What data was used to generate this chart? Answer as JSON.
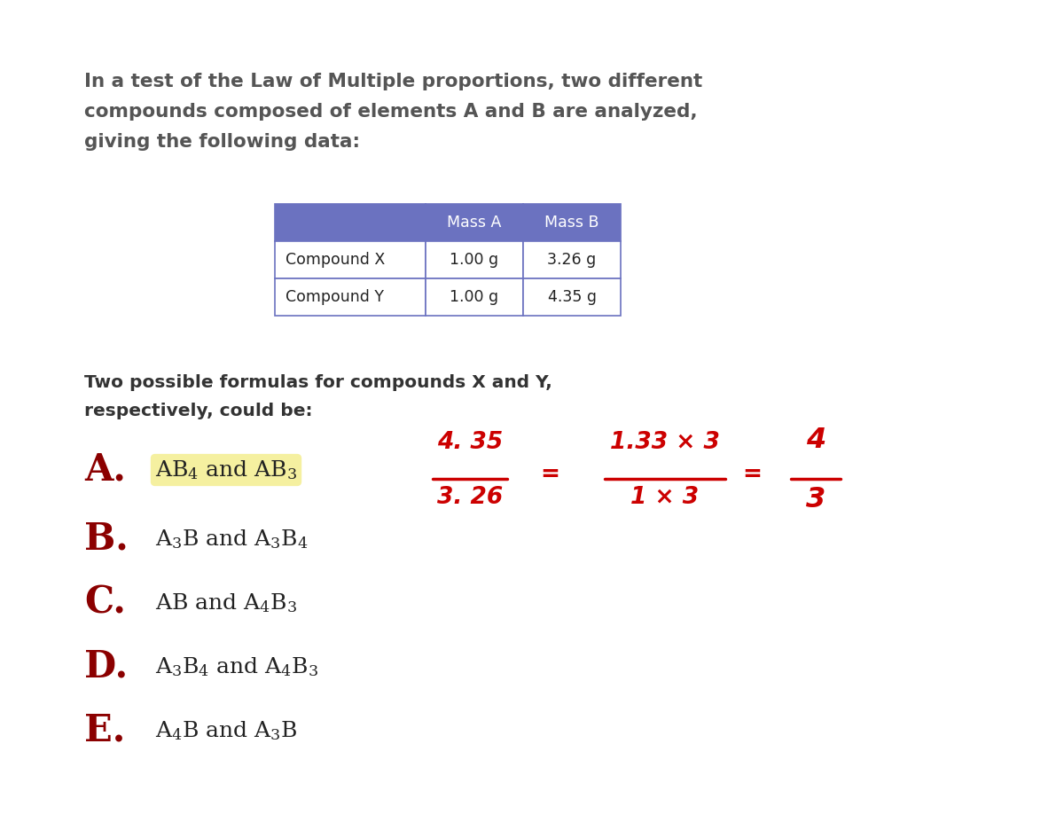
{
  "bg_color": "#ffffff",
  "title_lines": [
    "In a test of the Law of Multiple proportions, two different",
    "compounds composed of elements A and B are analyzed,",
    "giving the following data:"
  ],
  "title_color": "#555555",
  "title_fontsize": 15.5,
  "title_bold": true,
  "table_headers": [
    "",
    "Mass A",
    "Mass B"
  ],
  "table_rows": [
    [
      "Compound X",
      "1.00 g",
      "3.26 g"
    ],
    [
      "Compound Y",
      "1.00 g",
      "4.35 g"
    ]
  ],
  "table_header_bg": "#6b72c0",
  "table_header_fg": "#ffffff",
  "table_border_color": "#6b72c0",
  "table_cell_bg": "#ffffff",
  "table_cell_color": "#222222",
  "subtitle_lines": [
    "Two possible formulas for compounds X and Y,",
    "respectively, could be:"
  ],
  "subtitle_color": "#333333",
  "subtitle_fontsize": 14.5,
  "letter_color": "#8b0000",
  "letter_fontsize": 30,
  "option_text_fontsize": 18,
  "option_text_color": "#222222",
  "highlight_color": "#f5f0a0",
  "annotation_color": "#cc0000",
  "annotation_fontsize": 19
}
